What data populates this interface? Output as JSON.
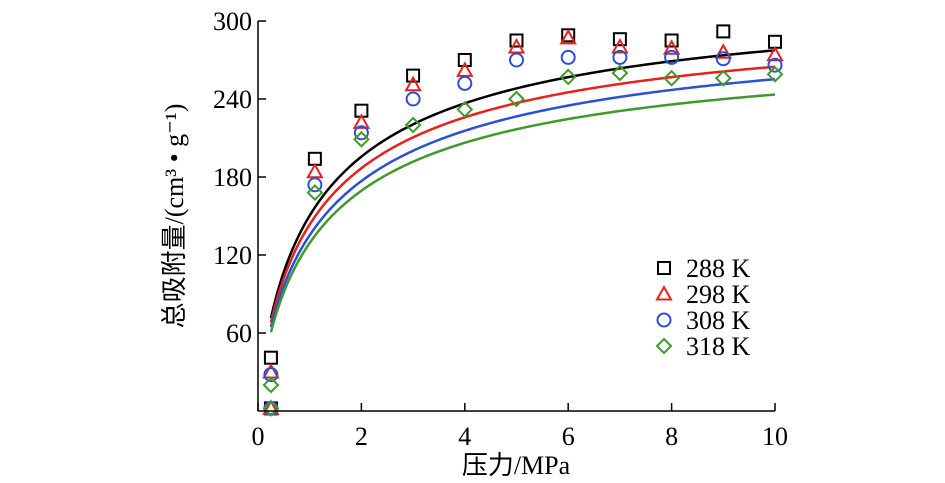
{
  "chart_data": {
    "type": "scatter",
    "xlabel": "压力/MPa",
    "ylabel": "总吸附量/(cm³ • g⁻¹)",
    "xlim": [
      0,
      10
    ],
    "ylim": [
      0,
      300
    ],
    "xticks": [
      0,
      2,
      4,
      6,
      8,
      10
    ],
    "yticks": [
      60,
      120,
      180,
      240,
      300
    ],
    "grid": false,
    "legend_position": "right-middle",
    "series": [
      {
        "name": "288 K",
        "color": "#000000",
        "marker": "square",
        "x": [
          0.25,
          0.25,
          1.1,
          2.0,
          3.0,
          4.0,
          5.0,
          6.0,
          7.0,
          8.0,
          9.0,
          10.0
        ],
        "y": [
          2,
          41,
          194,
          231,
          258,
          270,
          285,
          289,
          286,
          285,
          292,
          284
        ],
        "fit": {
          "qm": 330,
          "b": 0.8,
          "n": 0.8
        }
      },
      {
        "name": "298 K",
        "color": "#e8211c",
        "marker": "triangle",
        "x": [
          0.25,
          0.25,
          1.1,
          2.0,
          3.0,
          4.0,
          5.0,
          6.0,
          7.0,
          8.0,
          9.0,
          10.0
        ],
        "y": [
          2,
          30,
          184,
          222,
          251,
          262,
          280,
          287,
          280,
          279,
          276,
          274
        ],
        "fit": {
          "qm": 315,
          "b": 0.8,
          "n": 0.8
        }
      },
      {
        "name": "308 K",
        "color": "#2b4fd6",
        "marker": "circle",
        "x": [
          0.25,
          0.25,
          1.1,
          2.0,
          3.0,
          4.0,
          5.0,
          6.0,
          7.0,
          8.0,
          9.0,
          10.0
        ],
        "y": [
          2,
          28,
          174,
          214,
          240,
          252,
          270,
          272,
          272,
          272,
          271,
          266
        ],
        "fit": {
          "qm": 310,
          "b": 0.72,
          "n": 0.78
        }
      },
      {
        "name": "318 K",
        "color": "#3e9b2b",
        "marker": "diamond",
        "x": [
          0.25,
          0.25,
          1.1,
          2.0,
          3.0,
          4.0,
          5.0,
          6.0,
          7.0,
          8.0,
          9.0,
          10.0
        ],
        "y": [
          2,
          20,
          168,
          209,
          220,
          232,
          240,
          257,
          260,
          256,
          256,
          259
        ],
        "fit": {
          "qm": 292,
          "b": 0.75,
          "n": 0.8
        }
      }
    ]
  }
}
